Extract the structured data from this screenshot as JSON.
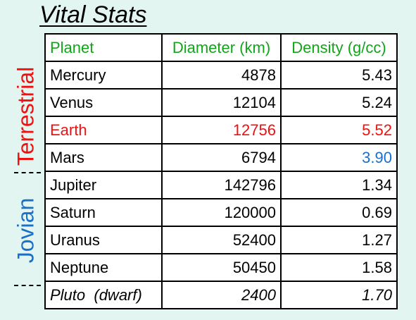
{
  "title": "Vital Stats",
  "group_labels": {
    "terrestrial": "Terrestrial",
    "jovian": "Jovian"
  },
  "colors": {
    "header": "#12a51a",
    "highlight_red": "#ee1111",
    "highlight_blue": "#1a6fc9",
    "background": "#e3f5f1"
  },
  "table": {
    "headers": [
      "Planet",
      "Diameter (km)",
      "Density (g/cc)"
    ],
    "rows": [
      {
        "planet": "Mercury",
        "diameter": "4878",
        "density": "5.43"
      },
      {
        "planet": "Venus",
        "diameter": "12104",
        "density": "5.24"
      },
      {
        "planet": "Earth",
        "diameter": "12756",
        "density": "5.52"
      },
      {
        "planet": "Mars",
        "diameter": "6794",
        "density": "3.90"
      },
      {
        "planet": "Jupiter",
        "diameter": "142796",
        "density": "1.34"
      },
      {
        "planet": "Saturn",
        "diameter": "120000",
        "density": "0.69"
      },
      {
        "planet": "Uranus",
        "diameter": "52400",
        "density": "1.27"
      },
      {
        "planet": "Neptune",
        "diameter": "50450",
        "density": "1.58"
      },
      {
        "planet": "Pluto  (dwarf)",
        "diameter": "2400",
        "density": "1.70"
      }
    ]
  }
}
